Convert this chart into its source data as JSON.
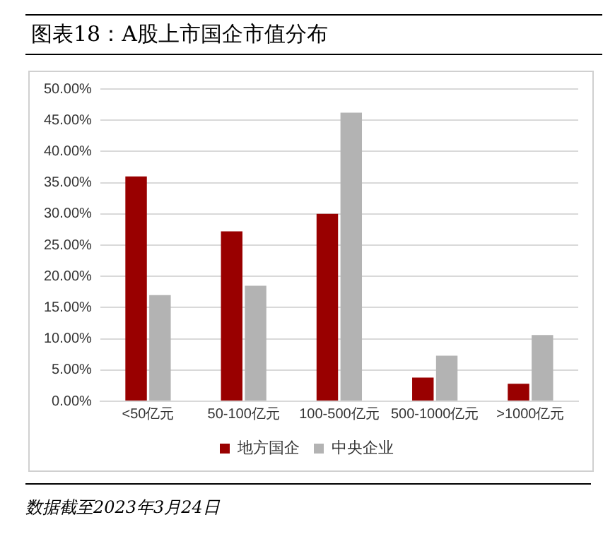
{
  "chart_data": {
    "type": "bar",
    "title": "图表18：A股上市国企市值分布",
    "categories": [
      "<50亿元",
      "50-100亿元",
      "100-500亿元",
      "500-1000亿元",
      ">1000亿元"
    ],
    "series": [
      {
        "name": "地方国企",
        "color": "#990000",
        "values": [
          36.0,
          27.2,
          30.0,
          3.8,
          2.8
        ]
      },
      {
        "name": "中央企业",
        "color": "#b3b3b3",
        "values": [
          17.0,
          18.5,
          46.2,
          7.3,
          10.6
        ]
      }
    ],
    "ylim": [
      0,
      50
    ],
    "yticks": [
      {
        "value": 0,
        "label": "0.00%"
      },
      {
        "value": 5,
        "label": "5.00%"
      },
      {
        "value": 10,
        "label": "10.00%"
      },
      {
        "value": 15,
        "label": "15.00%"
      },
      {
        "value": 20,
        "label": "20.00%"
      },
      {
        "value": 25,
        "label": "25.00%"
      },
      {
        "value": 30,
        "label": "30.00%"
      },
      {
        "value": 35,
        "label": "35.00%"
      },
      {
        "value": 40,
        "label": "40.00%"
      },
      {
        "value": 45,
        "label": "45.00%"
      },
      {
        "value": 50,
        "label": "50.00%"
      }
    ],
    "grid": "y",
    "legend": "bottom",
    "annotations": [
      "数据截至2023年3月24日"
    ]
  }
}
